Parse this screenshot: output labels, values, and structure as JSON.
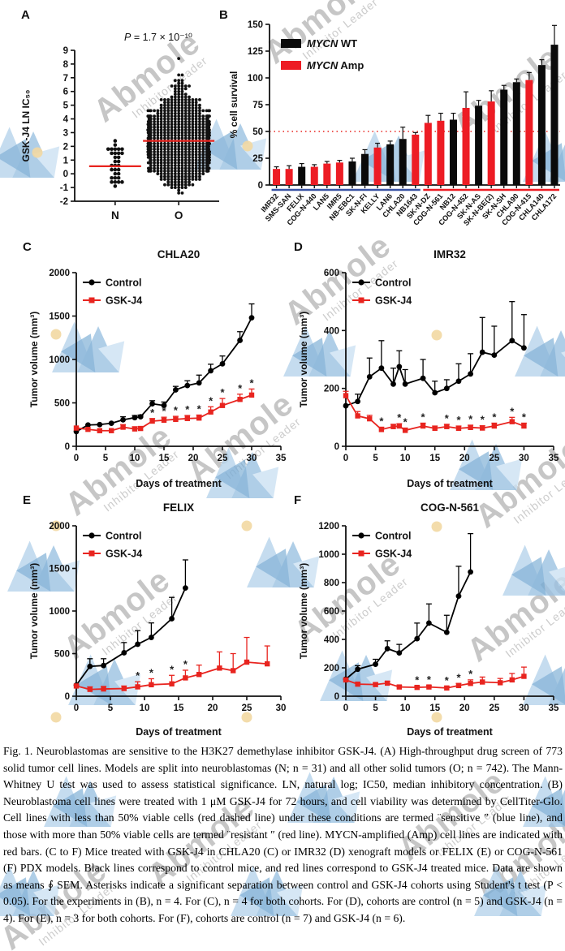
{
  "watermark": {
    "brand": "Abmole",
    "tagline": "Inhibitor Leader"
  },
  "panels": {
    "a": "A",
    "b": "B",
    "c": "C",
    "d": "D",
    "e": "E",
    "f": "F"
  },
  "colors": {
    "control": "#000000",
    "treated": "#e8241f",
    "bar_wt": "#0a0a0a",
    "bar_amp": "#ed1c24",
    "threshold": "#e8241f",
    "median": "#e8241f",
    "sensitive_underline": "#3a53a4",
    "resistant_underline": "#ed1c24"
  },
  "caption": {
    "text": "Fig. 1. Neuroblastomas are sensitive to the H3K27 demethylase inhibitor GSK-J4. (A) High-throughput drug screen of 773 solid tumor cell lines. Models are split into neuroblastomas (N; n = 31) and all other solid tumors (O; n = 742). The Mann-Whitney U test was used to assess statistical significance. LN, natural log; IC50, median inhibitory concentration. (B) Neuroblastoma cell lines were treated with 1 μM GSK-J4 for 72 hours, and cell viability was determined by CellTiter-Glo. Cell lines with less than 50% viable cells (red dashed line) under these conditions are termed ¨sensitive ″ (blue line), and those with more than 50% viable cells are termed ¨resistant ″ (red line). MYCN-amplified (Amp) cell lines are indicated with red bars. (C to F) Mice treated with GSK-J4 in CHLA20 (C) or IMR32 (D) xenograft models or FELIX (E) or COG-N-561 (F) PDX models. Black lines correspond to control mice, and red lines correspond to GSK-J4 treated mice. Data are shown as means ∮ SEM. Asterisks indicate a significant separation between control and GSK-J4 cohorts using Student's t test (P < 0.05). For the experiments in (B), n = 4. For (C), n = 4 for both cohorts. For (D), cohorts are control (n = 5) and GSK-J4 (n = 4). For (E), n = 3 for both cohorts. For (F), cohorts are control (n = 7) and GSK-J4 (n = 6)."
  },
  "chart_data": [
    {
      "id": "A",
      "type": "scatter",
      "subtype": "beeswarm",
      "p_value": "P = 1.7 × 10⁻¹⁰",
      "ylabel": "GSK-J4 LN IC₅₀",
      "ylim": [
        -2,
        9
      ],
      "yticks": [
        -2,
        -1,
        0,
        1,
        2,
        3,
        4,
        5,
        6,
        7,
        8,
        9
      ],
      "groups": [
        {
          "label": "N",
          "n": 31,
          "median": 0.55,
          "range": [
            -1.2,
            2.95
          ]
        },
        {
          "label": "O",
          "n": 742,
          "median": 2.4,
          "range": [
            -1.5,
            8.55
          ]
        }
      ]
    },
    {
      "id": "B",
      "type": "bar",
      "ylabel": "% cell survival",
      "ylim": [
        0,
        150
      ],
      "yticks": [
        0,
        25,
        50,
        75,
        100,
        125,
        150
      ],
      "threshold": 50,
      "legend": [
        {
          "gene": "MYCN",
          "suffix": " WT",
          "color": "#0a0a0a"
        },
        {
          "gene": "MYCN",
          "suffix": " Amp",
          "color": "#ed1c24"
        }
      ],
      "categories": [
        "IMR32",
        "SMS-SAN",
        "FELIX",
        "COG-N-440",
        "LAN5",
        "IMR5",
        "NB-EBC1",
        "SK-N-FI",
        "KELLY",
        "LAN6",
        "CHLA20",
        "NB1643",
        "SK-N-DZ",
        "COG-N-561",
        "NB12",
        "COG-N-452",
        "SK-N-AS",
        "SK-N-BE(2)",
        "SK-N-SH",
        "CHLA90",
        "COG-N-415",
        "CHLA140",
        "CHLA172"
      ],
      "values": [
        15,
        15,
        17,
        17,
        20,
        21,
        22,
        29,
        35,
        38,
        43,
        47,
        58,
        60,
        61,
        72,
        74,
        78,
        89,
        96,
        98,
        112,
        131
      ],
      "errors": [
        2,
        3,
        3,
        2,
        2,
        2,
        3,
        4,
        4,
        3,
        11,
        2,
        7,
        7,
        6,
        15,
        5,
        10,
        4,
        3,
        7,
        5,
        18
      ],
      "amp": [
        1,
        1,
        0,
        1,
        1,
        1,
        0,
        0,
        1,
        0,
        0,
        1,
        1,
        1,
        0,
        1,
        0,
        1,
        0,
        0,
        1,
        0,
        0
      ],
      "group_lines": [
        {
          "from": 0,
          "to": 11,
          "color": "#3a53a4",
          "label": "sensitive"
        },
        {
          "from": 12,
          "to": 22,
          "color": "#ed1c24",
          "label": "resistant"
        }
      ]
    },
    {
      "id": "C",
      "type": "line",
      "title": "CHLA20",
      "xlabel": "Days of treatment",
      "ylabel": "Tumor volume (mm³)",
      "xlim": [
        0,
        35
      ],
      "xticks": [
        0,
        5,
        10,
        15,
        20,
        25,
        30,
        35
      ],
      "ylim": [
        0,
        2000
      ],
      "yticks": [
        0,
        500,
        1000,
        1500,
        2000
      ],
      "series": [
        {
          "name": "Control",
          "color": "#000000",
          "marker": "circle",
          "x": [
            0,
            2,
            4,
            6,
            8,
            10,
            11,
            13,
            15,
            17,
            19,
            21,
            23,
            25,
            28,
            30
          ],
          "y": [
            170,
            245,
            250,
            265,
            305,
            330,
            340,
            490,
            470,
            650,
            700,
            730,
            870,
            950,
            1220,
            1480
          ],
          "err": [
            0,
            0,
            0,
            0,
            35,
            25,
            20,
            35,
            40,
            40,
            55,
            90,
            75,
            90,
            100,
            160
          ]
        },
        {
          "name": "GSK-J4",
          "color": "#e8241f",
          "marker": "square",
          "x": [
            0,
            2,
            4,
            6,
            8,
            10,
            11,
            13,
            15,
            17,
            19,
            21,
            23,
            25,
            28,
            30
          ],
          "y": [
            210,
            195,
            180,
            180,
            220,
            200,
            205,
            290,
            300,
            310,
            320,
            325,
            395,
            470,
            540,
            590
          ],
          "err": [
            0,
            0,
            0,
            0,
            30,
            25,
            20,
            30,
            35,
            35,
            35,
            35,
            60,
            80,
            60,
            70
          ],
          "sig": [
            13,
            15,
            17,
            19,
            21,
            23,
            25,
            28,
            30
          ]
        }
      ]
    },
    {
      "id": "D",
      "type": "line",
      "title": "IMR32",
      "xlabel": "Days of treatment",
      "ylabel": "Tumor volume (mm³)",
      "xlim": [
        0,
        35
      ],
      "xticks": [
        0,
        5,
        10,
        15,
        20,
        25,
        30,
        35
      ],
      "ylim": [
        0,
        600
      ],
      "yticks": [
        0,
        200,
        400,
        600
      ],
      "series": [
        {
          "name": "Control",
          "color": "#000000",
          "marker": "circle",
          "x": [
            0,
            2,
            4,
            6,
            8,
            9,
            10,
            13,
            15,
            17,
            19,
            21,
            23,
            25,
            28,
            30
          ],
          "y": [
            140,
            155,
            240,
            270,
            215,
            275,
            215,
            235,
            185,
            200,
            225,
            250,
            325,
            315,
            365,
            340
          ],
          "err": [
            0,
            25,
            65,
            95,
            55,
            55,
            50,
            65,
            40,
            30,
            60,
            70,
            120,
            100,
            135,
            115
          ]
        },
        {
          "name": "GSK-J4",
          "color": "#e8241f",
          "marker": "square",
          "x": [
            0,
            2,
            4,
            6,
            8,
            9,
            10,
            13,
            15,
            17,
            19,
            21,
            23,
            25,
            28,
            30
          ],
          "y": [
            175,
            105,
            95,
            58,
            68,
            70,
            55,
            70,
            62,
            68,
            62,
            65,
            63,
            70,
            85,
            70
          ],
          "err": [
            15,
            15,
            12,
            8,
            8,
            8,
            8,
            10,
            8,
            8,
            8,
            8,
            8,
            10,
            15,
            10
          ],
          "sig": [
            6,
            9,
            10,
            13,
            17,
            19,
            21,
            23,
            25,
            28,
            30
          ]
        }
      ]
    },
    {
      "id": "E",
      "type": "line",
      "title": "FELIX",
      "xlabel": "Days of treatment",
      "ylabel": "Tumor volume (mm³)",
      "xlim": [
        0,
        30
      ],
      "xticks": [
        0,
        5,
        10,
        15,
        20,
        25,
        30
      ],
      "ylim": [
        0,
        2000
      ],
      "yticks": [
        0,
        500,
        1000,
        1500,
        2000
      ],
      "series": [
        {
          "name": "Control",
          "color": "#000000",
          "marker": "circle",
          "x": [
            0,
            2,
            4,
            7,
            9,
            11,
            14,
            16
          ],
          "y": [
            130,
            350,
            360,
            510,
            610,
            690,
            910,
            1270
          ],
          "err": [
            0,
            90,
            80,
            120,
            160,
            170,
            250,
            330
          ]
        },
        {
          "name": "GSK-J4",
          "color": "#e8241f",
          "marker": "square",
          "x": [
            0,
            2,
            4,
            7,
            9,
            11,
            14,
            16,
            18,
            21,
            23,
            25,
            28
          ],
          "y": [
            120,
            80,
            85,
            90,
            110,
            135,
            145,
            215,
            255,
            330,
            300,
            400,
            380
          ],
          "err": [
            0,
            30,
            30,
            30,
            60,
            70,
            100,
            90,
            110,
            190,
            200,
            290,
            210
          ],
          "sig": [
            9,
            11,
            14,
            16
          ]
        }
      ]
    },
    {
      "id": "F",
      "type": "line",
      "title": "COG-N-561",
      "xlabel": "Days of treatment",
      "ylabel": "Tumor volume (mm³)",
      "xlim": [
        0,
        35
      ],
      "xticks": [
        0,
        5,
        10,
        15,
        20,
        25,
        30,
        35
      ],
      "ylim": [
        0,
        1200
      ],
      "yticks": [
        0,
        200,
        400,
        600,
        800,
        1000,
        1200
      ],
      "series": [
        {
          "name": "Control",
          "color": "#000000",
          "marker": "circle",
          "x": [
            0,
            2,
            5,
            7,
            9,
            12,
            14,
            17,
            19,
            21
          ],
          "y": [
            120,
            190,
            225,
            335,
            305,
            405,
            515,
            450,
            705,
            875
          ],
          "err": [
            0,
            25,
            35,
            55,
            60,
            110,
            135,
            120,
            210,
            270
          ]
        },
        {
          "name": "GSK-J4",
          "color": "#e8241f",
          "marker": "square",
          "x": [
            0,
            2,
            5,
            7,
            9,
            12,
            14,
            17,
            19,
            21,
            23,
            26,
            28,
            30
          ],
          "y": [
            115,
            85,
            82,
            92,
            65,
            62,
            65,
            58,
            75,
            90,
            100,
            95,
            115,
            140
          ],
          "err": [
            10,
            10,
            10,
            12,
            10,
            10,
            10,
            10,
            15,
            25,
            35,
            30,
            45,
            65
          ],
          "sig": [
            12,
            14,
            17,
            19,
            21
          ]
        }
      ]
    }
  ]
}
